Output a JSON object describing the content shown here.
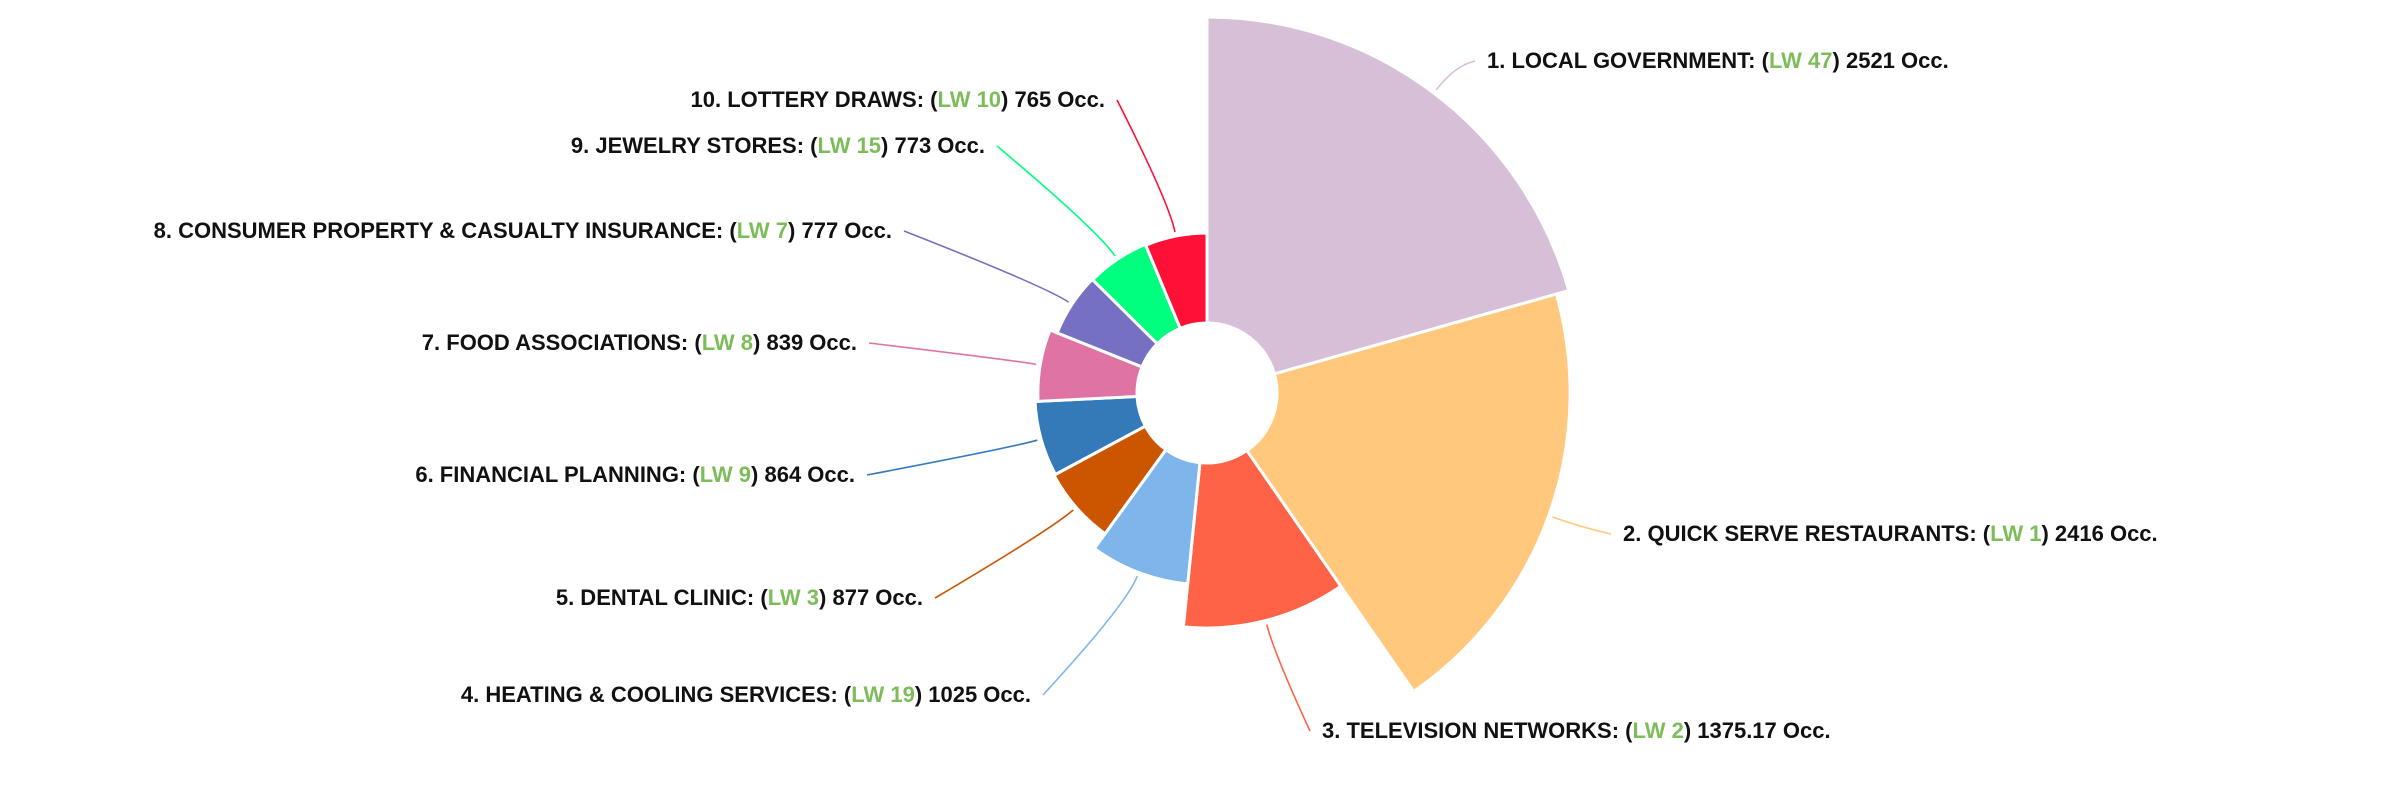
{
  "chart_data": {
    "type": "pie",
    "variant": "variable-radius donut",
    "legend": "none",
    "value_suffix": "Occ.",
    "lw_color": "#7cbd5a",
    "slices": [
      {
        "rank": "1.",
        "name": "LOCAL GOVERNMENT",
        "lw": "LW 47",
        "value": 2521,
        "value_text": "2521",
        "color": "#d8bfd8"
      },
      {
        "rank": "2.",
        "name": "QUICK SERVE RESTAURANTS",
        "lw": "LW 1",
        "value": 2416,
        "value_text": "2416",
        "color": "#ffc87c"
      },
      {
        "rank": "3.",
        "name": "TELEVISION NETWORKS",
        "lw": "LW 2",
        "value": 1375.17,
        "value_text": "1375.17",
        "color": "#ff6347"
      },
      {
        "rank": "4.",
        "name": "HEATING & COOLING SERVICES",
        "lw": "LW 19",
        "value": 1025,
        "value_text": "1025",
        "color": "#7eb6ec"
      },
      {
        "rank": "5.",
        "name": "DENTAL CLINIC",
        "lw": "LW 3",
        "value": 877,
        "value_text": "877",
        "color": "#cc5500"
      },
      {
        "rank": "6.",
        "name": "FINANCIAL PLANNING",
        "lw": "LW 9",
        "value": 864,
        "value_text": "864",
        "color": "#3479b8"
      },
      {
        "rank": "7.",
        "name": "FOOD ASSOCIATIONS",
        "lw": "LW 8",
        "value": 839,
        "value_text": "839",
        "color": "#df73a3"
      },
      {
        "rank": "8.",
        "name": "CONSUMER PROPERTY & CASUALTY INSURANCE",
        "lw": "LW 7",
        "value": 777,
        "value_text": "777",
        "color": "#7570c2"
      },
      {
        "rank": "9.",
        "name": "JEWELRY STORES",
        "lw": "LW 15",
        "value": 773,
        "value_text": "773",
        "color": "#00ff7f"
      },
      {
        "rank": "10.",
        "name": "LOTTERY DRAWS",
        "lw": "LW 10",
        "value": 765,
        "value_text": "765",
        "color": "#ff1036"
      }
    ]
  }
}
